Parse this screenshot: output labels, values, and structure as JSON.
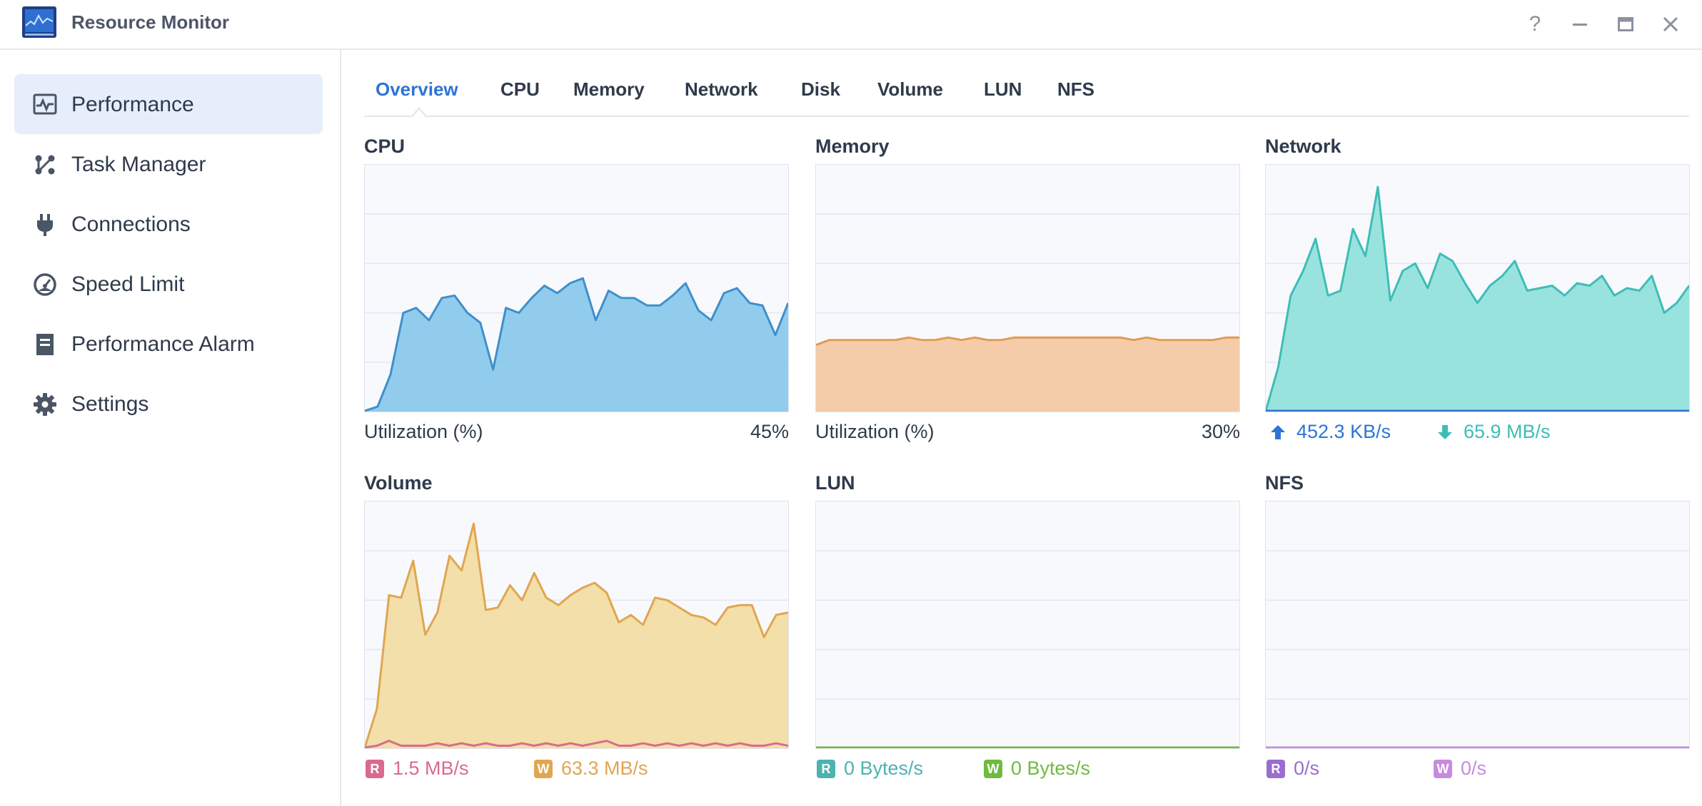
{
  "window": {
    "title": "Resource Monitor",
    "help_symbol": "?"
  },
  "sidebar": {
    "items": [
      {
        "label": "Performance",
        "icon": "performance-icon",
        "active": true
      },
      {
        "label": "Task Manager",
        "icon": "task-manager-icon",
        "active": false
      },
      {
        "label": "Connections",
        "icon": "plug-icon",
        "active": false
      },
      {
        "label": "Speed Limit",
        "icon": "gauge-icon",
        "active": false
      },
      {
        "label": "Performance Alarm",
        "icon": "alarm-report-icon",
        "active": false
      },
      {
        "label": "Settings",
        "icon": "gear-icon",
        "active": false
      }
    ]
  },
  "tabs": [
    {
      "label": "Overview",
      "active": true
    },
    {
      "label": "CPU"
    },
    {
      "label": "Memory"
    },
    {
      "label": "Network"
    },
    {
      "label": "Disk"
    },
    {
      "label": "Volume"
    },
    {
      "label": "LUN"
    },
    {
      "label": "NFS"
    }
  ],
  "colors": {
    "accent": "#2e74d6",
    "cpu_line": "#3f8fcc",
    "cpu_fill": "#86c6ea",
    "memory_line": "#e09a55",
    "memory_fill": "#f4c7a0",
    "network_line": "#3dbdb6",
    "network_fill": "#8ee0dc",
    "network_upload": "#2e74d6",
    "network_download": "#3dbdb6",
    "volume_write_line": "#e0a650",
    "volume_write_fill": "#f2dba0",
    "volume_read": "#d86b8f",
    "lun_read": "#4cb3b0",
    "lun_write": "#6ebb3e",
    "nfs_read": "#9a6ed0",
    "nfs_write": "#c68be0"
  },
  "panels": {
    "cpu": {
      "title": "CPU",
      "label": "Utilization  (%)",
      "value": "45%"
    },
    "memory": {
      "title": "Memory",
      "label": "Utilization  (%)",
      "value": "30%"
    },
    "network": {
      "title": "Network",
      "upload": "452.3 KB/s",
      "download": "65.9 MB/s"
    },
    "volume": {
      "title": "Volume",
      "read_badge": "R",
      "read": "1.5 MB/s",
      "write_badge": "W",
      "write": "63.3 MB/s"
    },
    "lun": {
      "title": "LUN",
      "read_badge": "R",
      "read": "0 Bytes/s",
      "write_badge": "W",
      "write": "0 Bytes/s"
    },
    "nfs": {
      "title": "NFS",
      "read_badge": "R",
      "read": "0/s",
      "write_badge": "W",
      "write": "0/s"
    }
  },
  "chart_data": [
    {
      "type": "area",
      "title": "CPU",
      "ylabel": "Utilization  (%)",
      "ylim": [
        0,
        100
      ],
      "grid": true,
      "series": [
        {
          "values": [
            0,
            2,
            15,
            40,
            42,
            37,
            46,
            47,
            40,
            36,
            17,
            42,
            40,
            46,
            51,
            48,
            52,
            54,
            37,
            49,
            46,
            46,
            43,
            43,
            47,
            52,
            41,
            37,
            48,
            50,
            44,
            43,
            31,
            44
          ]
        }
      ]
    },
    {
      "type": "area",
      "title": "Memory",
      "ylabel": "Utilization  (%)",
      "ylim": [
        0,
        100
      ],
      "grid": true,
      "series": [
        {
          "values": [
            27,
            29,
            29,
            29,
            29,
            29,
            29,
            30,
            29,
            29,
            30,
            29,
            30,
            29,
            29,
            30,
            30,
            30,
            30,
            30,
            30,
            30,
            30,
            30,
            29,
            30,
            29,
            29,
            29,
            29,
            29,
            30,
            30
          ]
        }
      ]
    },
    {
      "type": "area",
      "title": "Network",
      "ylim": [
        0,
        100
      ],
      "grid": true,
      "series": [
        {
          "values": [
            0,
            18,
            47,
            57,
            70,
            47,
            49,
            74,
            63,
            91,
            45,
            57,
            60,
            50,
            64,
            61,
            52,
            44,
            51,
            55,
            61,
            49,
            50,
            51,
            47,
            52,
            51,
            55,
            47,
            50,
            49,
            55,
            40,
            44,
            51
          ]
        },
        {
          "values": [
            0,
            0,
            0,
            0,
            0,
            0,
            0,
            0,
            0,
            0,
            0,
            0,
            0,
            0,
            0,
            0,
            0,
            0,
            0,
            0,
            0,
            0,
            0,
            0,
            0,
            0,
            0,
            0,
            0,
            0,
            0,
            0,
            0,
            0,
            0
          ]
        }
      ]
    },
    {
      "type": "area",
      "title": "Volume",
      "ylim": [
        0,
        100
      ],
      "grid": true,
      "series": [
        {
          "values": [
            0,
            16,
            62,
            61,
            76,
            46,
            55,
            78,
            72,
            91,
            56,
            57,
            66,
            60,
            71,
            61,
            58,
            62,
            65,
            67,
            63,
            51,
            54,
            50,
            61,
            60,
            57,
            54,
            53,
            50,
            57,
            58,
            58,
            45,
            54,
            55
          ]
        },
        {
          "values": [
            0,
            1,
            3,
            1,
            1,
            1,
            2,
            1,
            2,
            1,
            2,
            1,
            1,
            2,
            1,
            2,
            1,
            2,
            1,
            2,
            3,
            1,
            1,
            2,
            1,
            2,
            1,
            2,
            1,
            2,
            1,
            2,
            1,
            1,
            2,
            1
          ]
        }
      ]
    },
    {
      "type": "area",
      "title": "LUN",
      "ylim": [
        0,
        100
      ],
      "grid": true,
      "series": [
        {
          "values": [
            0,
            0,
            0,
            0,
            0,
            0,
            0,
            0,
            0,
            0
          ]
        },
        {
          "values": [
            0,
            0,
            0,
            0,
            0,
            0,
            0,
            0,
            0,
            0
          ]
        }
      ]
    },
    {
      "type": "area",
      "title": "NFS",
      "ylim": [
        0,
        100
      ],
      "grid": true,
      "series": [
        {
          "values": [
            0,
            0,
            0,
            0,
            0,
            0,
            0,
            0,
            0,
            0
          ]
        },
        {
          "values": [
            0,
            0,
            0,
            0,
            0,
            0,
            0,
            0,
            0,
            0
          ]
        }
      ]
    }
  ]
}
